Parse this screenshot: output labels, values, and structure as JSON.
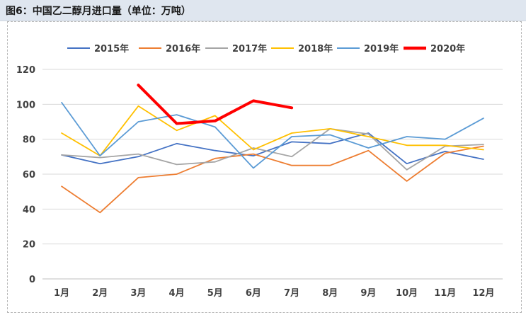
{
  "figure": {
    "title": "图6：中国乙二醇月进口量（单位：万吨）"
  },
  "chart_data": {
    "type": "line",
    "title": "",
    "xlabel": "",
    "ylabel": "",
    "ylim": [
      0,
      120
    ],
    "yticks": [
      0,
      20,
      40,
      60,
      80,
      100,
      120
    ],
    "grid": "horizontal",
    "legend_position": "top",
    "categories": [
      "1月",
      "2月",
      "3月",
      "4月",
      "5月",
      "6月",
      "7月",
      "8月",
      "9月",
      "10月",
      "11月",
      "12月"
    ],
    "series": [
      {
        "name": "2015年",
        "color": "#4472c4",
        "values": [
          71,
          66,
          70,
          77.5,
          73.5,
          70.5,
          78.5,
          77.5,
          83.5,
          66,
          73,
          68.5
        ]
      },
      {
        "name": "2016年",
        "color": "#ed7d31",
        "values": [
          53,
          38,
          58,
          60,
          69,
          71.5,
          65,
          65,
          73.5,
          56,
          72,
          76
        ]
      },
      {
        "name": "2017年",
        "color": "#a5a5a5",
        "values": [
          71,
          69.5,
          71.5,
          65.5,
          67,
          75,
          70,
          86,
          83,
          62.5,
          76,
          77
        ]
      },
      {
        "name": "2018年",
        "color": "#ffc000",
        "values": [
          83.5,
          70.5,
          99,
          85,
          93.5,
          74,
          83.5,
          86,
          81.5,
          76.5,
          76.5,
          74
        ]
      },
      {
        "name": "2019年",
        "color": "#5b9bd5",
        "values": [
          101,
          70.5,
          90,
          94,
          87,
          63.5,
          81.5,
          82.5,
          75,
          81.5,
          80,
          92
        ]
      },
      {
        "name": "2020年",
        "color": "#ff0000",
        "values": [
          null,
          null,
          111,
          89,
          90.5,
          102,
          98,
          null,
          null,
          null,
          null,
          null
        ]
      }
    ]
  }
}
